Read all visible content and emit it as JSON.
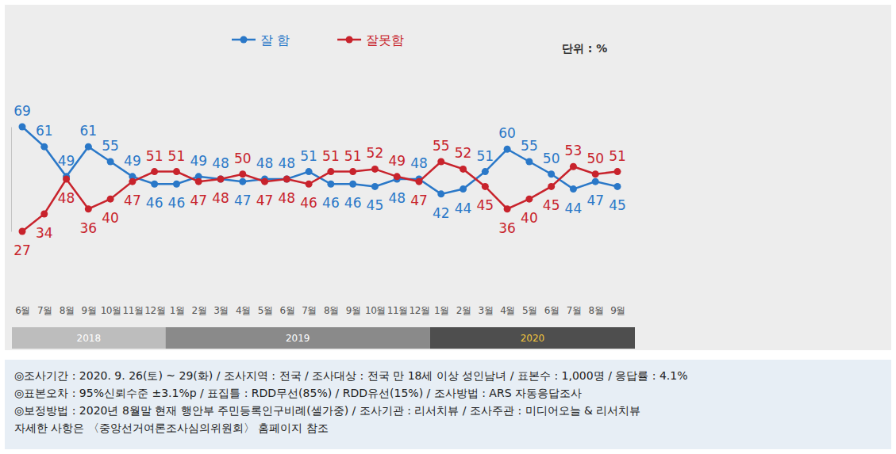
{
  "chart_data": {
    "type": "line",
    "unit_label": "단위 : %",
    "categories": [
      "6월",
      "7월",
      "8월",
      "9월",
      "10월",
      "11월",
      "12월",
      "1월",
      "2월",
      "3월",
      "4월",
      "5월",
      "6월",
      "7월",
      "8월",
      "9월",
      "10월",
      "11월",
      "12월",
      "1월",
      "2월",
      "3월",
      "4월",
      "5월",
      "6월",
      "7월",
      "8월",
      "9월"
    ],
    "year_groups": [
      {
        "label": "2018",
        "count": 7
      },
      {
        "label": "2019",
        "count": 12
      },
      {
        "label": "2020",
        "count": 9
      }
    ],
    "series": [
      {
        "name": "잘 함",
        "color": "#2a78c8",
        "marker": "circle",
        "values": [
          69,
          61,
          49,
          61,
          55,
          49,
          46,
          46,
          49,
          48,
          47,
          48,
          48,
          51,
          46,
          46,
          45,
          48,
          48,
          42,
          44,
          51,
          60,
          55,
          50,
          44,
          47,
          45
        ]
      },
      {
        "name": "잘못함",
        "color": "#c8232c",
        "marker": "circle",
        "values": [
          27,
          34,
          48,
          36,
          40,
          47,
          51,
          51,
          47,
          48,
          50,
          47,
          48,
          46,
          51,
          51,
          52,
          49,
          47,
          55,
          52,
          45,
          36,
          40,
          45,
          53,
          50,
          51
        ]
      }
    ],
    "ylim": [
      27,
      69
    ],
    "data_labels": true,
    "tick_labels": "x",
    "legend": "top",
    "notes": [
      "◎조사기간 : 2020. 9. 26(토) ~ 29(화) / 조사지역 : 전국 / 조사대상 : 전국 만 18세 이상 성인남녀 / 표본수 : 1,000명 / 응답률 : 4.1%",
      "◎표본오차 : 95%신뢰수준 ±3.1%p / 표집틀 : RDD무선(85%) / RDD유선(15%) / 조사방법 : ARS 자동응답조사",
      "◎보정방법 : 2020년 8월말 현재 행안부 주민등록인구비례(셀가중) / 조사기관 : 리서치뷰 / 조사주관 : 미디어오늘 & 리서치뷰",
      "자세한 사항은 〈중앙선거여론조사심의위원회〉 홈페이지 참조"
    ]
  }
}
